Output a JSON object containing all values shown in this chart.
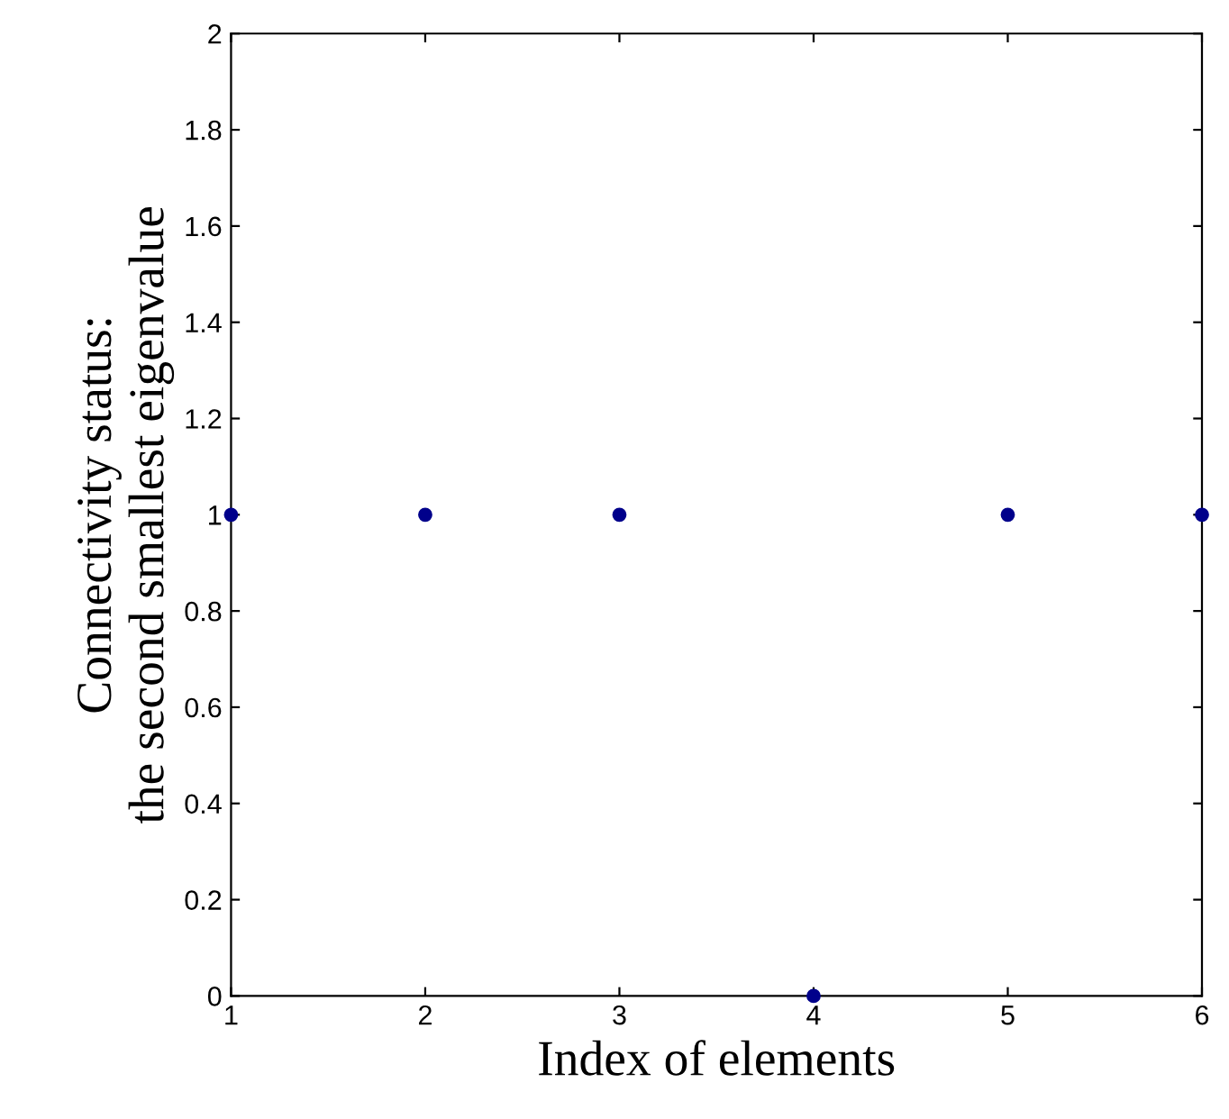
{
  "chart_data": {
    "type": "scatter",
    "xlabel": "Index of elements",
    "ylabel": "Connectivity status:\nthe second smallest eigenvalue",
    "x": [
      1,
      2,
      3,
      4,
      5,
      6
    ],
    "series": [
      {
        "color": "#00008b",
        "values": [
          1,
          1,
          1,
          0,
          1,
          1
        ]
      }
    ],
    "xlim": [
      1,
      6
    ],
    "xticks": [
      1,
      2,
      3,
      4,
      5,
      6
    ],
    "ylim": [
      0,
      2
    ],
    "yticks": [
      0,
      0.2,
      0.4,
      0.6,
      0.8,
      1,
      1.2,
      1.4,
      1.6,
      1.8,
      2
    ],
    "marker": "circle",
    "grid": false,
    "legend": false
  }
}
